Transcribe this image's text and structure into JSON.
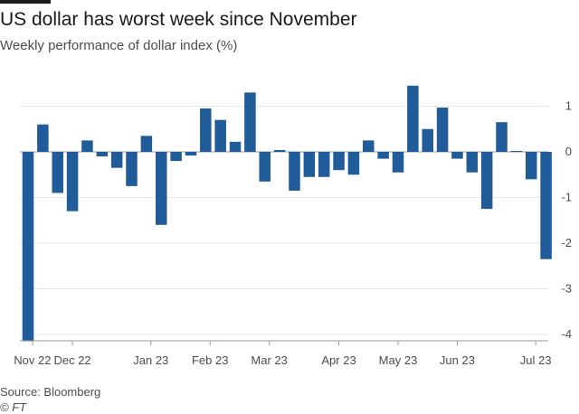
{
  "header": {
    "title": "US dollar has worst week since November",
    "subtitle": "Weekly performance of dollar index (%)"
  },
  "footer": {
    "source": "Source: Bloomberg",
    "brand": "© FT"
  },
  "colors": {
    "bar": "#1f5c99",
    "grid": "#e6e6e6",
    "zero_line": "#999999",
    "text": "#4d4d4d"
  },
  "chart_data": {
    "type": "bar",
    "title": "US dollar has worst week since November",
    "subtitle": "Weekly performance of dollar index (%)",
    "xlabel": "",
    "ylabel": "Weekly performance of dollar index (%)",
    "ylim": [
      -4.1,
      1.5
    ],
    "yticks": [
      1,
      0,
      -1,
      -2,
      -3,
      -4
    ],
    "ytick_labels": [
      "1",
      "0",
      "-1",
      "-2",
      "-3",
      "-4"
    ],
    "grid": true,
    "x_tick_labels": [
      "Nov 22",
      "Dec 22",
      "Jan 23",
      "Feb 23",
      "Mar 23",
      "Apr 23",
      "May 23",
      "Jun 23",
      "Jul 23"
    ],
    "x_tick_weeks": [
      0.3,
      3,
      8.3,
      12.3,
      16.3,
      21,
      25,
      29,
      34.3
    ],
    "values": [
      -4.15,
      0.6,
      -0.9,
      -1.3,
      0.25,
      -0.1,
      -0.35,
      -0.75,
      0.35,
      -1.6,
      -0.2,
      -0.08,
      0.95,
      0.7,
      0.22,
      1.3,
      -0.65,
      0.04,
      -0.85,
      -0.55,
      -0.55,
      -0.4,
      -0.5,
      0.25,
      -0.15,
      -0.45,
      1.45,
      0.5,
      0.97,
      -0.15,
      -0.45,
      -1.25,
      0.65,
      0.02,
      -0.6,
      -2.35
    ],
    "source": "Source: Bloomberg"
  }
}
